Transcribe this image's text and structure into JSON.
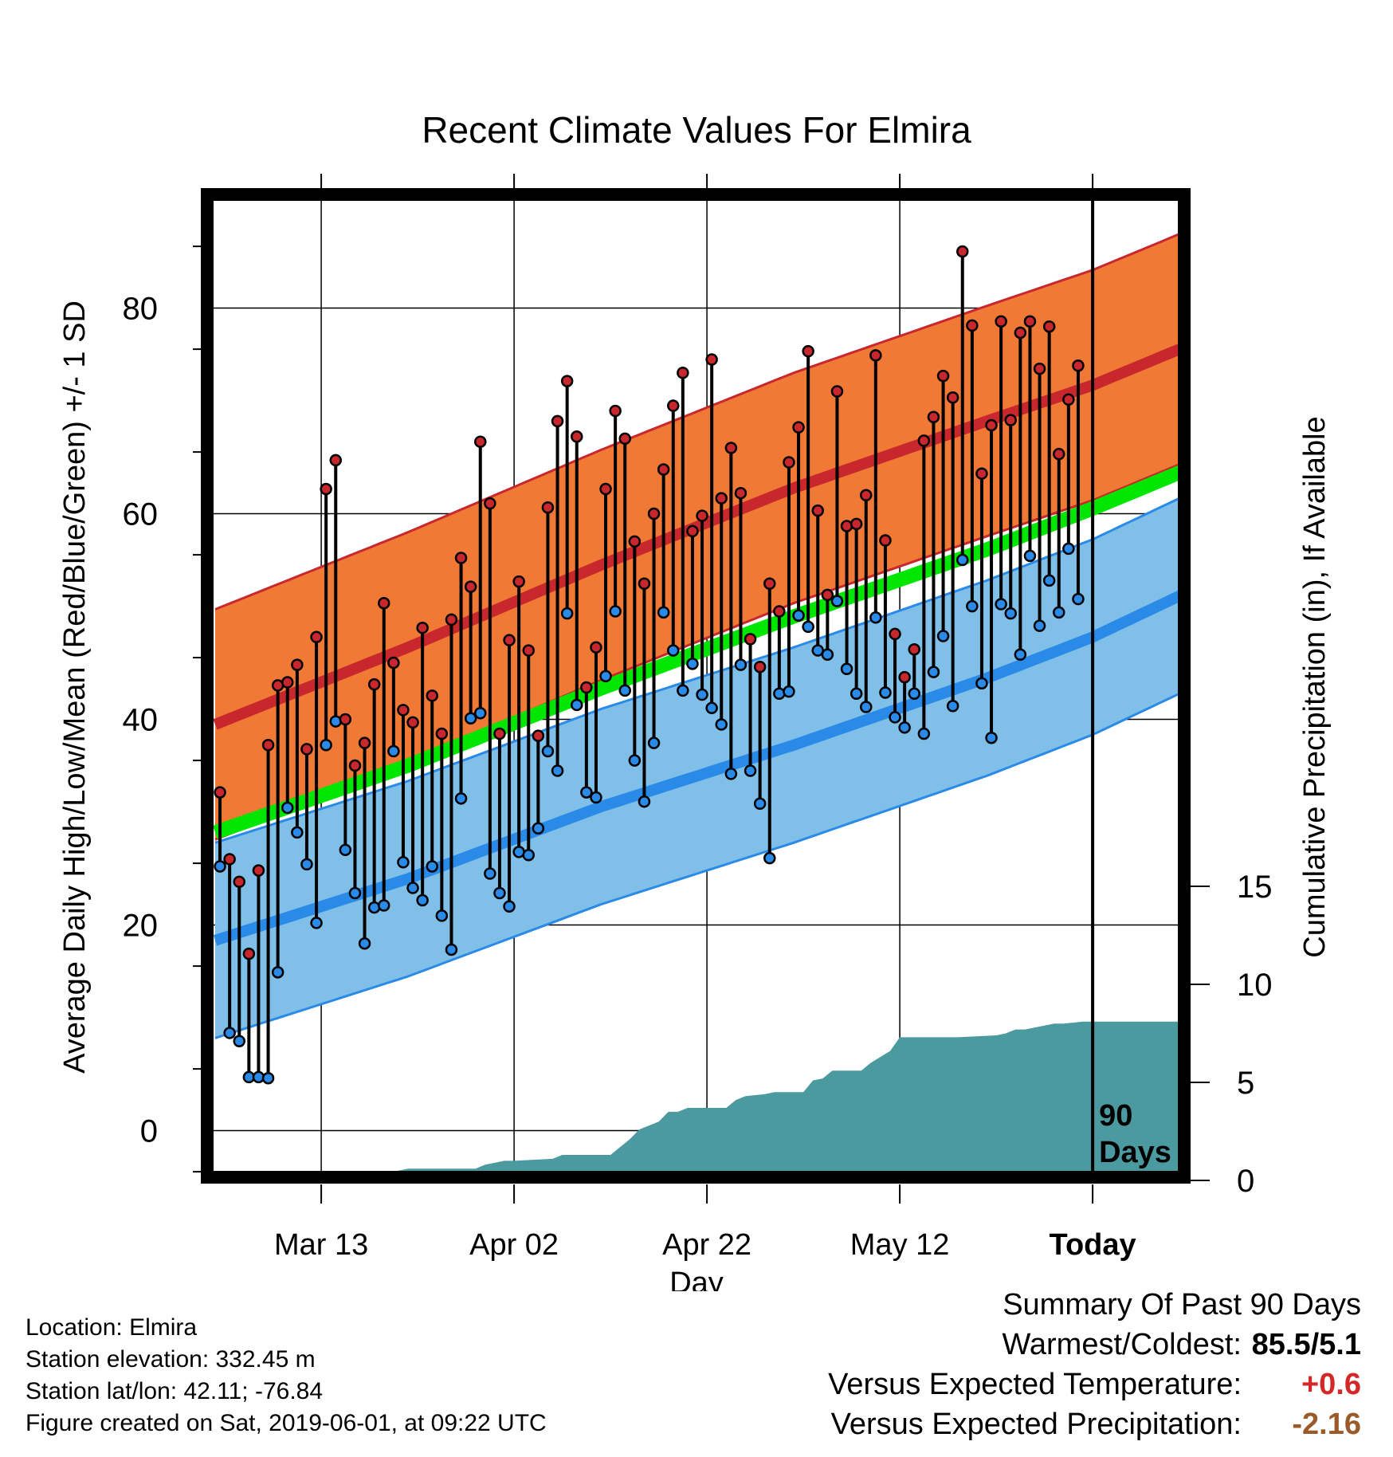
{
  "chart_data": {
    "type": "line",
    "title": "Recent Climate Values For Elmira",
    "xlabel": "Day",
    "ylabel": "Average Daily High/Low/Mean (Red/Blue/Green) +/- 1 SD",
    "y2label": "Cumulative Precipitation (in), If Available",
    "x_tick_labels": [
      "Mar 13",
      "Apr 02",
      "Apr 22",
      "May 12",
      "Today"
    ],
    "x_tick_days": [
      11,
      31,
      51,
      71,
      91
    ],
    "x_range_days": [
      0,
      101
    ],
    "ylim": [
      -4,
      90
    ],
    "y_ticks": [
      0,
      20,
      40,
      60,
      80
    ],
    "y2lim": [
      0,
      20
    ],
    "y2_ticks": [
      0,
      5,
      10,
      15
    ],
    "grid": true,
    "today_marker_label": "90\nDays",
    "colors": {
      "high": "#c8282d",
      "high_band": "#f07a35",
      "low": "#2a8ae8",
      "low_band": "#80c0e8",
      "mean": "#00e600",
      "precip": "#4a9aa0"
    },
    "normal_high": {
      "days": [
        0,
        20,
        40,
        60,
        80,
        91,
        100
      ],
      "mean": [
        39.5,
        47.0,
        55.0,
        62.5,
        69.0,
        72.5,
        76.0
      ],
      "sd": 11.2
    },
    "normal_low": {
      "days": [
        0,
        20,
        40,
        60,
        80,
        91,
        100
      ],
      "mean": [
        18.5,
        24.5,
        31.5,
        37.5,
        44.0,
        48.0,
        52.0
      ],
      "sd": 9.5
    },
    "normal_mean": {
      "days": [
        0,
        20,
        40,
        60,
        80,
        91,
        100
      ],
      "values": [
        29.0,
        35.5,
        43.0,
        50.0,
        56.5,
        60.5,
        64.0
      ]
    },
    "daily_high": [
      32.9,
      26.4,
      24.2,
      17.2,
      25.3,
      37.5,
      43.3,
      43.6,
      45.3,
      37.1,
      48.0,
      62.4,
      65.2,
      40.0,
      35.5,
      37.7,
      43.4,
      51.3,
      45.5,
      40.9,
      39.7,
      48.9,
      42.3,
      38.6,
      49.7,
      55.7,
      52.9,
      67.0,
      61.0,
      38.6,
      47.7,
      53.4,
      46.7,
      38.4,
      60.6,
      69.0,
      72.9,
      67.5,
      43.1,
      47.0,
      62.4,
      70.0,
      67.3,
      57.3,
      53.2,
      60.0,
      64.3,
      70.5,
      73.7,
      58.3,
      59.8,
      75.0,
      61.5,
      66.4,
      62.0,
      47.8,
      45.1,
      53.2,
      50.5,
      65.0,
      68.4,
      75.8,
      60.3,
      52.1,
      71.9,
      58.8,
      59.0,
      61.8,
      75.4,
      57.4,
      48.3,
      44.1,
      46.8,
      67.1,
      69.4,
      73.4,
      71.3,
      85.5,
      78.3,
      63.9,
      68.6,
      78.7,
      69.1,
      77.6,
      78.7,
      74.1,
      78.2,
      65.8,
      71.1,
      74.4
    ],
    "daily_low": [
      25.7,
      9.5,
      8.7,
      5.2,
      5.2,
      5.1,
      15.4,
      31.4,
      29.0,
      25.9,
      20.2,
      37.5,
      39.8,
      27.3,
      23.1,
      18.2,
      21.7,
      21.9,
      36.9,
      26.1,
      23.6,
      22.4,
      25.7,
      20.9,
      17.6,
      32.3,
      40.1,
      40.6,
      25.0,
      23.1,
      21.8,
      27.1,
      26.8,
      29.4,
      36.9,
      35.0,
      50.3,
      41.4,
      32.9,
      32.4,
      44.2,
      50.5,
      42.8,
      36.0,
      32.0,
      37.7,
      50.4,
      46.7,
      42.8,
      45.4,
      42.4,
      41.1,
      39.5,
      34.7,
      45.3,
      35.0,
      31.8,
      26.5,
      42.5,
      42.7,
      50.1,
      49.0,
      46.7,
      46.3,
      51.5,
      44.9,
      42.5,
      41.2,
      49.9,
      42.6,
      40.2,
      39.2,
      42.5,
      38.6,
      44.6,
      48.1,
      41.3,
      55.5,
      51.0,
      43.5,
      38.2,
      51.2,
      50.3,
      46.3,
      55.9,
      49.1,
      53.5,
      50.4,
      56.6,
      51.7
    ],
    "cumulative_precip": {
      "days": [
        0,
        18,
        19,
        20,
        27,
        28,
        30,
        31,
        35,
        36,
        40,
        41,
        43,
        44,
        46,
        47,
        48,
        49,
        53,
        54,
        55,
        57,
        58,
        61,
        62,
        63,
        64,
        67,
        68,
        70,
        71,
        77,
        81,
        82,
        83,
        84,
        85,
        86,
        87,
        88,
        90,
        100
      ],
      "values": [
        0,
        0,
        0.5,
        0.6,
        0.6,
        0.8,
        1.0,
        1.0,
        1.1,
        1.3,
        1.3,
        1.3,
        2.1,
        2.6,
        3.0,
        3.5,
        3.5,
        3.7,
        3.7,
        4.1,
        4.3,
        4.4,
        4.5,
        4.5,
        5.1,
        5.2,
        5.6,
        5.6,
        6.0,
        6.6,
        7.3,
        7.3,
        7.4,
        7.5,
        7.7,
        7.7,
        7.8,
        7.9,
        8.0,
        8.0,
        8.1,
        8.1
      ]
    }
  },
  "footer_info": {
    "location": "Location: Elmira",
    "elevation": "Station elevation: 332.45 m",
    "latlon": "Station lat/lon: 42.11; -76.84",
    "created": "Figure created on Sat, 2019-06-01, at 09:22 UTC"
  },
  "summary": {
    "heading": "Summary Of Past 90 Days",
    "warmest_coldest_label": "Warmest/Coldest:",
    "warmest_coldest_value": "85.5/5.1",
    "temp_label": "Versus Expected Temperature:",
    "temp_value": "+0.6",
    "temp_color": "#d42828",
    "precip_label": "Versus Expected Precipitation:",
    "precip_value": "-2.16",
    "precip_color": "#9a5a2a"
  }
}
